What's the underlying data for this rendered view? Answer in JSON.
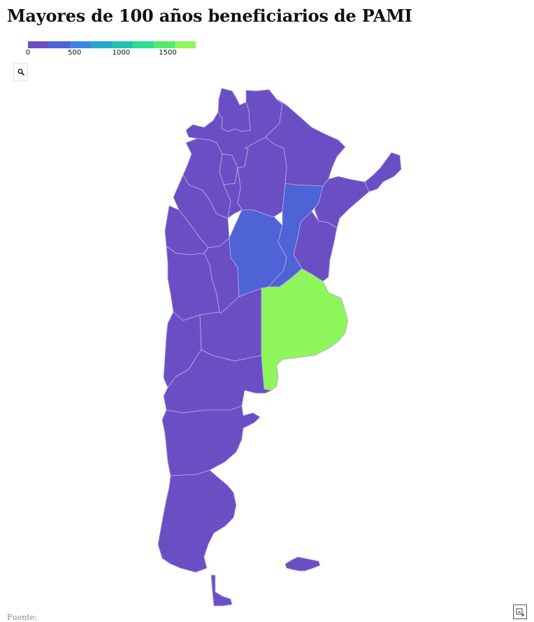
{
  "title": "Mayores de 100 años beneficiarios de PAMI",
  "legend": {
    "colors": [
      "#6a4fc4",
      "#4e63d6",
      "#3a86df",
      "#22a9d2",
      "#1fc3b0",
      "#2bde8c",
      "#52ec6a",
      "#8ef55a"
    ],
    "ticks": [
      "0",
      "500",
      "1000",
      "1500"
    ],
    "tick_values": [
      0,
      500,
      1000,
      1500
    ],
    "min": 0,
    "max": 1800
  },
  "map": {
    "region": "Argentina",
    "color_map": {
      "lowest": "#6a4fc4",
      "medium": "#4e63d6",
      "highest": "#8ef55a",
      "province_border": "#b9ace6"
    },
    "provinces_highlighted": {
      "Córdoba": "medium",
      "Santa Fe": "medium",
      "Buenos Aires": "highest"
    }
  },
  "icons": {
    "zoom": "magnifier-icon",
    "export": "download-image-icon"
  },
  "source_label": "Fuente:"
}
